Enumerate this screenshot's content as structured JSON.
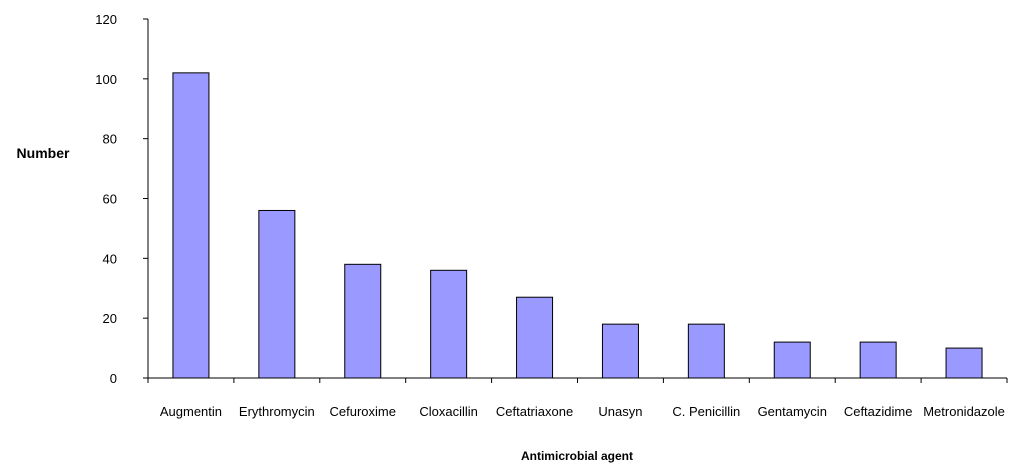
{
  "chart_data": {
    "type": "bar",
    "categories": [
      "Augmentin",
      "Erythromycin",
      "Cefuroxime",
      "Cloxacillin",
      "Ceftatriaxone",
      "Unasyn",
      "C. Penicillin",
      "Gentamycin",
      "Ceftazidime",
      "Metronidazole"
    ],
    "values": [
      102,
      56,
      38,
      36,
      27,
      18,
      18,
      12,
      12,
      10
    ],
    "title": "",
    "xlabel": "Antimicrobial agent",
    "ylabel": "Number",
    "ylim": [
      0,
      120
    ],
    "yticks": [
      0,
      20,
      40,
      60,
      80,
      100,
      120
    ],
    "grid": false,
    "legend": "none",
    "colors": {
      "bar_fill": "#9999ff",
      "bar_stroke": "#000000",
      "axis": "#000000"
    }
  }
}
